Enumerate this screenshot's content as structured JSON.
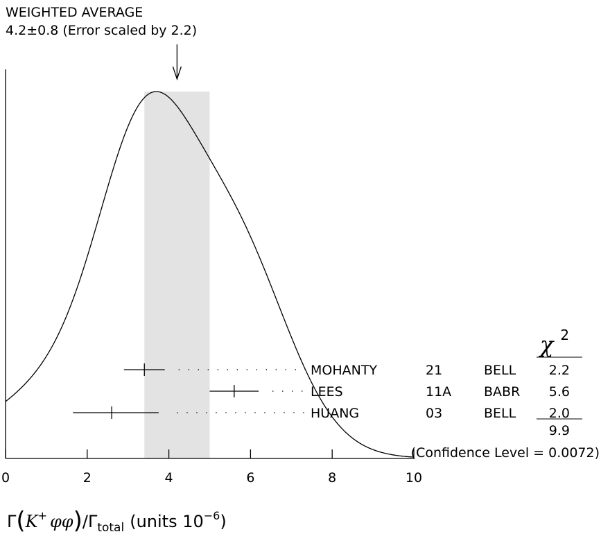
{
  "chart_data": {
    "type": "ideogram",
    "title": "WEIGHTED AVERAGE",
    "subtitle": "4.2±0.8 (Error scaled by 2.2)",
    "weighted_average": {
      "value": 4.2,
      "error": 0.8,
      "error_scale": 2.2
    },
    "xlim": [
      0,
      10
    ],
    "x_ticks": [
      0,
      2,
      4,
      6,
      8,
      10
    ],
    "xlabel": {
      "gamma": "Γ",
      "particle": "K",
      "charge": "+",
      "phi": "φφ",
      "slash_gamma": "/Γ",
      "total": "total",
      "units": "(units 10",
      "exponent": "−6",
      "close": ")"
    },
    "chi2_header": {
      "symbol": "χ",
      "power": "2"
    },
    "measurements": [
      {
        "author": "MOHANTY",
        "year": "21",
        "experiment": "BELL",
        "value": 3.4,
        "error_low": 0.5,
        "error_high": 0.5,
        "chi2": "2.2"
      },
      {
        "author": "LEES",
        "year": "11A",
        "experiment": "BABR",
        "value": 5.6,
        "error_low": 0.6,
        "error_high": 0.6,
        "chi2": "5.6"
      },
      {
        "author": "HUANG",
        "year": "03",
        "experiment": "BELL",
        "value": 2.6,
        "error_low": 0.95,
        "error_high": 1.15,
        "chi2": "2.0"
      }
    ],
    "chi2_total": "9.9",
    "confidence_level": "(Confidence Level = 0.0072)"
  }
}
